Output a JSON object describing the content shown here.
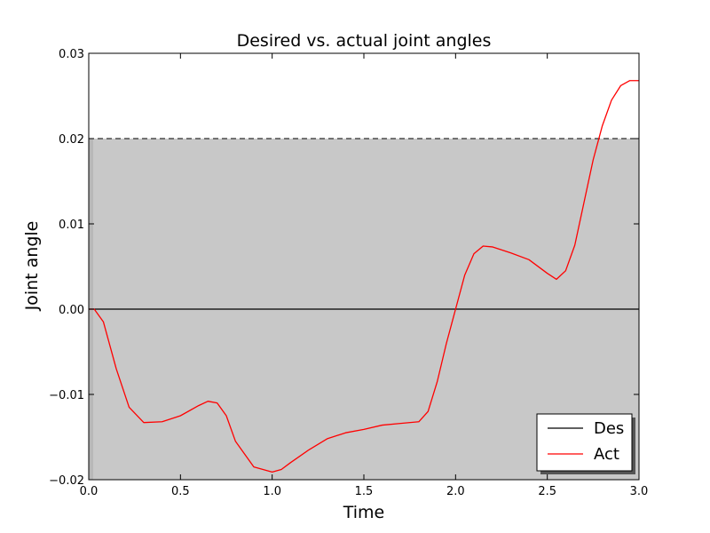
{
  "chart_data": {
    "type": "line",
    "title": "Desired vs. actual joint angles",
    "xlabel": "Time",
    "ylabel": "Joint angle",
    "xlim": [
      0.0,
      3.0
    ],
    "ylim": [
      -0.02,
      0.03
    ],
    "xticks": [
      "0.0",
      "0.5",
      "1.0",
      "1.5",
      "2.0",
      "2.5",
      "3.0"
    ],
    "xtick_values": [
      0.0,
      0.5,
      1.0,
      1.5,
      2.0,
      2.5,
      3.0
    ],
    "yticks": [
      "−0.02",
      "−0.01",
      "0.00",
      "0.01",
      "0.02",
      "0.03"
    ],
    "ytick_values": [
      -0.02,
      -0.01,
      0.0,
      0.01,
      0.02,
      0.03
    ],
    "band": {
      "lower": -0.02,
      "upper": 0.02,
      "color": "#c8c8c8",
      "edge_style": "dashed"
    },
    "legend_position": "lower-right",
    "series": [
      {
        "name": "Des",
        "color": "#000000",
        "x": [
          0.0,
          3.0
        ],
        "y": [
          0.0,
          0.0
        ]
      },
      {
        "name": "Act",
        "color": "#ff0000",
        "x": [
          0.0,
          0.03,
          0.08,
          0.15,
          0.22,
          0.3,
          0.4,
          0.5,
          0.6,
          0.65,
          0.7,
          0.75,
          0.8,
          0.9,
          1.0,
          1.05,
          1.1,
          1.2,
          1.3,
          1.4,
          1.5,
          1.6,
          1.7,
          1.8,
          1.85,
          1.9,
          1.95,
          2.0,
          2.05,
          2.1,
          2.15,
          2.2,
          2.3,
          2.4,
          2.5,
          2.55,
          2.6,
          2.65,
          2.7,
          2.75,
          2.8,
          2.85,
          2.9,
          2.95,
          3.0
        ],
        "y": [
          0.0,
          0.0,
          -0.0015,
          -0.007,
          -0.0115,
          -0.0133,
          -0.0132,
          -0.0125,
          -0.0113,
          -0.0108,
          -0.011,
          -0.0125,
          -0.0155,
          -0.0185,
          -0.0191,
          -0.0188,
          -0.018,
          -0.0165,
          -0.0152,
          -0.0145,
          -0.0141,
          -0.0136,
          -0.0134,
          -0.0132,
          -0.012,
          -0.0085,
          -0.004,
          0.0,
          0.004,
          0.0065,
          0.0074,
          0.0073,
          0.0066,
          0.0058,
          0.0042,
          0.0035,
          0.0045,
          0.0075,
          0.0125,
          0.0175,
          0.0215,
          0.0245,
          0.0262,
          0.0268,
          0.0268
        ]
      }
    ]
  }
}
